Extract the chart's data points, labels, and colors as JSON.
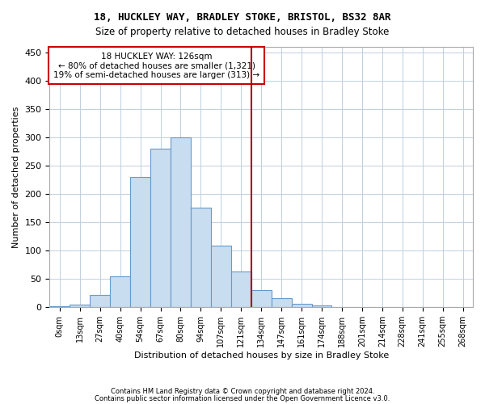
{
  "title1": "18, HUCKLEY WAY, BRADLEY STOKE, BRISTOL, BS32 8AR",
  "title2": "Size of property relative to detached houses in Bradley Stoke",
  "xlabel": "Distribution of detached houses by size in Bradley Stoke",
  "ylabel": "Number of detached properties",
  "bin_labels": [
    "0sqm",
    "13sqm",
    "27sqm",
    "40sqm",
    "54sqm",
    "67sqm",
    "80sqm",
    "94sqm",
    "107sqm",
    "121sqm",
    "134sqm",
    "147sqm",
    "161sqm",
    "174sqm",
    "188sqm",
    "201sqm",
    "214sqm",
    "228sqm",
    "241sqm",
    "255sqm",
    "268sqm"
  ],
  "bar_values": [
    2,
    5,
    22,
    55,
    230,
    280,
    300,
    175,
    108,
    63,
    30,
    16,
    6,
    3,
    0,
    0,
    0,
    0,
    0,
    0,
    0
  ],
  "bar_color": "#c9ddf0",
  "bar_edge_color": "#6699cc",
  "vline_x": 9.5,
  "vline_color": "#aa0000",
  "annotation_text": "18 HUCKLEY WAY: 126sqm\n← 80% of detached houses are smaller (1,321)\n19% of semi-detached houses are larger (313) →",
  "annotation_box_color": "#ffffff",
  "annotation_box_edge": "#cc0000",
  "footnote1": "Contains HM Land Registry data © Crown copyright and database right 2024.",
  "footnote2": "Contains public sector information licensed under the Open Government Licence v3.0.",
  "ylim_max": 460,
  "yticks": [
    0,
    50,
    100,
    150,
    200,
    250,
    300,
    350,
    400,
    450
  ],
  "figwidth": 6.0,
  "figheight": 5.0,
  "dpi": 100
}
